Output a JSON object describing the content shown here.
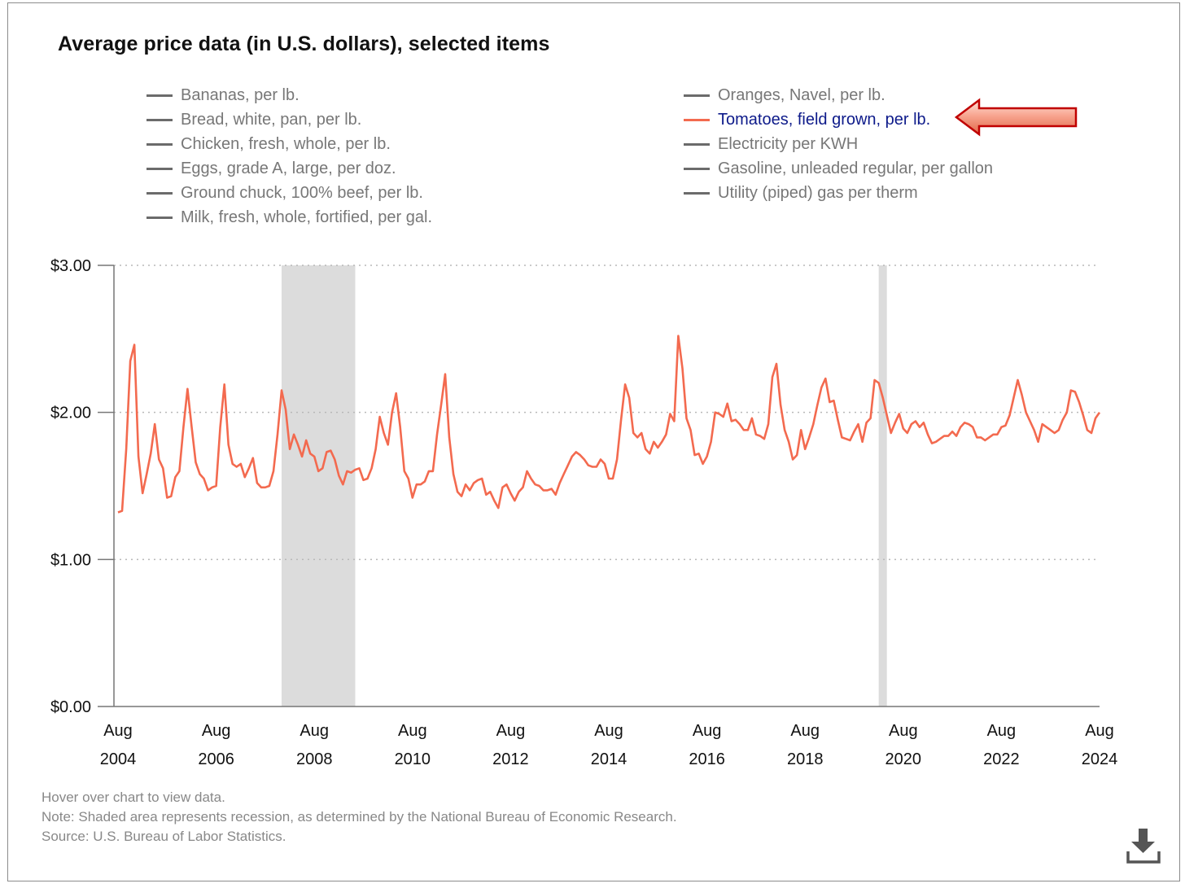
{
  "colors": {
    "highlight_line": "#f36a4f",
    "legend_inactive": "#6b6b6b",
    "legend_highlight_text": "#0d1a8a",
    "recession_shade": "#dcdcdc",
    "arrow_fill": "#f7a58f",
    "arrow_stroke": "#c00000"
  },
  "icons": {
    "annotation": "left-arrow-icon",
    "download": "download-icon"
  },
  "legend": [
    {
      "label": "Bananas, per lb.",
      "active": false
    },
    {
      "label": "Bread, white, pan, per lb.",
      "active": false
    },
    {
      "label": "Chicken, fresh, whole, per lb.",
      "active": false
    },
    {
      "label": "Eggs, grade A, large, per doz.",
      "active": false
    },
    {
      "label": "Ground chuck, 100% beef, per lb.",
      "active": false
    },
    {
      "label": "Milk, fresh, whole, fortified, per gal.",
      "active": false
    },
    {
      "label": "Oranges, Navel, per lb.",
      "active": false
    },
    {
      "label": "Tomatoes, field grown, per lb.",
      "active": true
    },
    {
      "label": "Electricity per KWH",
      "active": false
    },
    {
      "label": "Gasoline, unleaded regular, per gallon",
      "active": false
    },
    {
      "label": "Utility (piped) gas per therm",
      "active": false
    }
  ],
  "chart_data": {
    "type": "line",
    "title": "Average price data (in U.S. dollars), selected items",
    "ylim": [
      0,
      3
    ],
    "yticks": [
      {
        "value": 0,
        "label": "$0.00"
      },
      {
        "value": 1,
        "label": "$1.00"
      },
      {
        "value": 2,
        "label": "$2.00"
      },
      {
        "value": 3,
        "label": "$3.00"
      }
    ],
    "xlim": [
      "2004-07",
      "2024-08"
    ],
    "xticks": [
      {
        "date": "2004-08",
        "month": "Aug",
        "year": "2004"
      },
      {
        "date": "2006-08",
        "month": "Aug",
        "year": "2006"
      },
      {
        "date": "2008-08",
        "month": "Aug",
        "year": "2008"
      },
      {
        "date": "2010-08",
        "month": "Aug",
        "year": "2010"
      },
      {
        "date": "2012-08",
        "month": "Aug",
        "year": "2012"
      },
      {
        "date": "2014-08",
        "month": "Aug",
        "year": "2014"
      },
      {
        "date": "2016-08",
        "month": "Aug",
        "year": "2016"
      },
      {
        "date": "2018-08",
        "month": "Aug",
        "year": "2018"
      },
      {
        "date": "2020-08",
        "month": "Aug",
        "year": "2020"
      },
      {
        "date": "2022-08",
        "month": "Aug",
        "year": "2022"
      },
      {
        "date": "2024-08",
        "month": "Aug",
        "year": "2024"
      }
    ],
    "grid": "horizontal dotted",
    "recessions": [
      {
        "start": "2007-12",
        "end": "2009-06"
      },
      {
        "start": "2020-02",
        "end": "2020-04"
      }
    ],
    "series": [
      {
        "name": "Tomatoes, field grown, per lb.",
        "points": [
          [
            "2004-08",
            1.32
          ],
          [
            "2004-09",
            1.33
          ],
          [
            "2004-10",
            1.75
          ],
          [
            "2004-11",
            2.35
          ],
          [
            "2004-12",
            2.46
          ],
          [
            "2005-01",
            1.7
          ],
          [
            "2005-02",
            1.45
          ],
          [
            "2005-03",
            1.58
          ],
          [
            "2005-04",
            1.72
          ],
          [
            "2005-05",
            1.92
          ],
          [
            "2005-06",
            1.68
          ],
          [
            "2005-07",
            1.62
          ],
          [
            "2005-08",
            1.42
          ],
          [
            "2005-09",
            1.43
          ],
          [
            "2005-10",
            1.56
          ],
          [
            "2005-11",
            1.6
          ],
          [
            "2005-12",
            1.9
          ],
          [
            "2006-01",
            2.16
          ],
          [
            "2006-02",
            1.9
          ],
          [
            "2006-03",
            1.66
          ],
          [
            "2006-04",
            1.58
          ],
          [
            "2006-05",
            1.55
          ],
          [
            "2006-06",
            1.47
          ],
          [
            "2006-07",
            1.49
          ],
          [
            "2006-08",
            1.5
          ],
          [
            "2006-09",
            1.9
          ],
          [
            "2006-10",
            2.19
          ],
          [
            "2006-11",
            1.78
          ],
          [
            "2006-12",
            1.65
          ],
          [
            "2007-01",
            1.63
          ],
          [
            "2007-02",
            1.65
          ],
          [
            "2007-03",
            1.56
          ],
          [
            "2007-04",
            1.62
          ],
          [
            "2007-05",
            1.69
          ],
          [
            "2007-06",
            1.52
          ],
          [
            "2007-07",
            1.49
          ],
          [
            "2007-08",
            1.49
          ],
          [
            "2007-09",
            1.5
          ],
          [
            "2007-10",
            1.6
          ],
          [
            "2007-11",
            1.85
          ],
          [
            "2007-12",
            2.15
          ],
          [
            "2008-01",
            2.02
          ],
          [
            "2008-02",
            1.75
          ],
          [
            "2008-03",
            1.85
          ],
          [
            "2008-04",
            1.78
          ],
          [
            "2008-05",
            1.7
          ],
          [
            "2008-06",
            1.81
          ],
          [
            "2008-07",
            1.72
          ],
          [
            "2008-08",
            1.7
          ],
          [
            "2008-09",
            1.6
          ],
          [
            "2008-10",
            1.62
          ],
          [
            "2008-11",
            1.73
          ],
          [
            "2008-12",
            1.74
          ],
          [
            "2009-01",
            1.68
          ],
          [
            "2009-02",
            1.57
          ],
          [
            "2009-03",
            1.51
          ],
          [
            "2009-04",
            1.6
          ],
          [
            "2009-05",
            1.59
          ],
          [
            "2009-06",
            1.61
          ],
          [
            "2009-07",
            1.62
          ],
          [
            "2009-08",
            1.54
          ],
          [
            "2009-09",
            1.55
          ],
          [
            "2009-10",
            1.62
          ],
          [
            "2009-11",
            1.75
          ],
          [
            "2009-12",
            1.97
          ],
          [
            "2010-01",
            1.86
          ],
          [
            "2010-02",
            1.78
          ],
          [
            "2010-03",
            2.0
          ],
          [
            "2010-04",
            2.13
          ],
          [
            "2010-05",
            1.9
          ],
          [
            "2010-06",
            1.6
          ],
          [
            "2010-07",
            1.55
          ],
          [
            "2010-08",
            1.42
          ],
          [
            "2010-09",
            1.51
          ],
          [
            "2010-10",
            1.51
          ],
          [
            "2010-11",
            1.53
          ],
          [
            "2010-12",
            1.6
          ],
          [
            "2011-01",
            1.6
          ],
          [
            "2011-02",
            1.85
          ],
          [
            "2011-03",
            2.05
          ],
          [
            "2011-04",
            2.26
          ],
          [
            "2011-05",
            1.83
          ],
          [
            "2011-06",
            1.58
          ],
          [
            "2011-07",
            1.46
          ],
          [
            "2011-08",
            1.43
          ],
          [
            "2011-09",
            1.51
          ],
          [
            "2011-10",
            1.47
          ],
          [
            "2011-11",
            1.52
          ],
          [
            "2011-12",
            1.54
          ],
          [
            "2012-01",
            1.55
          ],
          [
            "2012-02",
            1.44
          ],
          [
            "2012-03",
            1.46
          ],
          [
            "2012-04",
            1.4
          ],
          [
            "2012-05",
            1.35
          ],
          [
            "2012-06",
            1.49
          ],
          [
            "2012-07",
            1.51
          ],
          [
            "2012-08",
            1.45
          ],
          [
            "2012-09",
            1.4
          ],
          [
            "2012-10",
            1.46
          ],
          [
            "2012-11",
            1.49
          ],
          [
            "2012-12",
            1.6
          ],
          [
            "2013-01",
            1.55
          ],
          [
            "2013-02",
            1.51
          ],
          [
            "2013-03",
            1.5
          ],
          [
            "2013-04",
            1.47
          ],
          [
            "2013-05",
            1.47
          ],
          [
            "2013-06",
            1.48
          ],
          [
            "2013-07",
            1.44
          ],
          [
            "2013-08",
            1.52
          ],
          [
            "2013-09",
            1.58
          ],
          [
            "2013-10",
            1.64
          ],
          [
            "2013-11",
            1.7
          ],
          [
            "2013-12",
            1.73
          ],
          [
            "2014-01",
            1.71
          ],
          [
            "2014-02",
            1.68
          ],
          [
            "2014-03",
            1.64
          ],
          [
            "2014-04",
            1.63
          ],
          [
            "2014-05",
            1.63
          ],
          [
            "2014-06",
            1.68
          ],
          [
            "2014-07",
            1.65
          ],
          [
            "2014-08",
            1.55
          ],
          [
            "2014-09",
            1.55
          ],
          [
            "2014-10",
            1.68
          ],
          [
            "2014-11",
            1.95
          ],
          [
            "2014-12",
            2.19
          ],
          [
            "2015-01",
            2.1
          ],
          [
            "2015-02",
            1.86
          ],
          [
            "2015-03",
            1.83
          ],
          [
            "2015-04",
            1.86
          ],
          [
            "2015-05",
            1.75
          ],
          [
            "2015-06",
            1.72
          ],
          [
            "2015-07",
            1.8
          ],
          [
            "2015-08",
            1.76
          ],
          [
            "2015-09",
            1.8
          ],
          [
            "2015-10",
            1.85
          ],
          [
            "2015-11",
            1.99
          ],
          [
            "2015-12",
            1.94
          ],
          [
            "2016-01",
            2.52
          ],
          [
            "2016-02",
            2.3
          ],
          [
            "2016-03",
            1.96
          ],
          [
            "2016-04",
            1.88
          ],
          [
            "2016-05",
            1.71
          ],
          [
            "2016-06",
            1.72
          ],
          [
            "2016-07",
            1.65
          ],
          [
            "2016-08",
            1.7
          ],
          [
            "2016-09",
            1.8
          ],
          [
            "2016-10",
            2.0
          ],
          [
            "2016-11",
            1.99
          ],
          [
            "2016-12",
            1.97
          ],
          [
            "2017-01",
            2.06
          ],
          [
            "2017-02",
            1.94
          ],
          [
            "2017-03",
            1.95
          ],
          [
            "2017-04",
            1.92
          ],
          [
            "2017-05",
            1.88
          ],
          [
            "2017-06",
            1.88
          ],
          [
            "2017-07",
            1.96
          ],
          [
            "2017-08",
            1.85
          ],
          [
            "2017-09",
            1.84
          ],
          [
            "2017-10",
            1.82
          ],
          [
            "2017-11",
            1.92
          ],
          [
            "2017-12",
            2.24
          ],
          [
            "2018-01",
            2.33
          ],
          [
            "2018-02",
            2.05
          ],
          [
            "2018-03",
            1.88
          ],
          [
            "2018-04",
            1.8
          ],
          [
            "2018-05",
            1.68
          ],
          [
            "2018-06",
            1.71
          ],
          [
            "2018-07",
            1.88
          ],
          [
            "2018-08",
            1.75
          ],
          [
            "2018-09",
            1.83
          ],
          [
            "2018-10",
            1.92
          ],
          [
            "2018-11",
            2.05
          ],
          [
            "2018-12",
            2.17
          ],
          [
            "2019-01",
            2.23
          ],
          [
            "2019-02",
            2.07
          ],
          [
            "2019-03",
            2.08
          ],
          [
            "2019-04",
            1.95
          ],
          [
            "2019-05",
            1.83
          ],
          [
            "2019-06",
            1.82
          ],
          [
            "2019-07",
            1.81
          ],
          [
            "2019-08",
            1.87
          ],
          [
            "2019-09",
            1.92
          ],
          [
            "2019-10",
            1.8
          ],
          [
            "2019-11",
            1.93
          ],
          [
            "2019-12",
            1.96
          ],
          [
            "2020-01",
            2.22
          ],
          [
            "2020-02",
            2.2
          ],
          [
            "2020-03",
            2.1
          ],
          [
            "2020-04",
            1.98
          ],
          [
            "2020-05",
            1.86
          ],
          [
            "2020-06",
            1.93
          ],
          [
            "2020-07",
            1.99
          ],
          [
            "2020-08",
            1.89
          ],
          [
            "2020-09",
            1.86
          ],
          [
            "2020-10",
            1.92
          ],
          [
            "2020-11",
            1.94
          ],
          [
            "2020-12",
            1.9
          ],
          [
            "2021-01",
            1.93
          ],
          [
            "2021-02",
            1.85
          ],
          [
            "2021-03",
            1.79
          ],
          [
            "2021-04",
            1.8
          ],
          [
            "2021-05",
            1.82
          ],
          [
            "2021-06",
            1.84
          ],
          [
            "2021-07",
            1.84
          ],
          [
            "2021-08",
            1.87
          ],
          [
            "2021-09",
            1.84
          ],
          [
            "2021-10",
            1.9
          ],
          [
            "2021-11",
            1.93
          ],
          [
            "2021-12",
            1.92
          ],
          [
            "2022-01",
            1.9
          ],
          [
            "2022-02",
            1.83
          ],
          [
            "2022-03",
            1.83
          ],
          [
            "2022-04",
            1.81
          ],
          [
            "2022-05",
            1.83
          ],
          [
            "2022-06",
            1.85
          ],
          [
            "2022-07",
            1.85
          ],
          [
            "2022-08",
            1.9
          ],
          [
            "2022-09",
            1.91
          ],
          [
            "2022-10",
            1.98
          ],
          [
            "2022-11",
            2.1
          ],
          [
            "2022-12",
            2.22
          ],
          [
            "2023-01",
            2.12
          ],
          [
            "2023-02",
            2.0
          ],
          [
            "2023-03",
            1.94
          ],
          [
            "2023-04",
            1.88
          ],
          [
            "2023-05",
            1.8
          ],
          [
            "2023-06",
            1.92
          ],
          [
            "2023-07",
            1.9
          ],
          [
            "2023-08",
            1.88
          ],
          [
            "2023-09",
            1.86
          ],
          [
            "2023-10",
            1.88
          ],
          [
            "2023-11",
            1.95
          ],
          [
            "2023-12",
            2.0
          ],
          [
            "2024-01",
            2.15
          ],
          [
            "2024-02",
            2.14
          ],
          [
            "2024-03",
            2.07
          ],
          [
            "2024-04",
            1.98
          ],
          [
            "2024-05",
            1.88
          ],
          [
            "2024-06",
            1.86
          ],
          [
            "2024-07",
            1.96
          ],
          [
            "2024-08",
            2.0
          ]
        ]
      }
    ]
  },
  "footnotes": [
    "Hover over chart to view data.",
    "Note: Shaded area represents recession, as determined by the National Bureau of Economic Research.",
    "Source: U.S. Bureau of Labor Statistics."
  ]
}
